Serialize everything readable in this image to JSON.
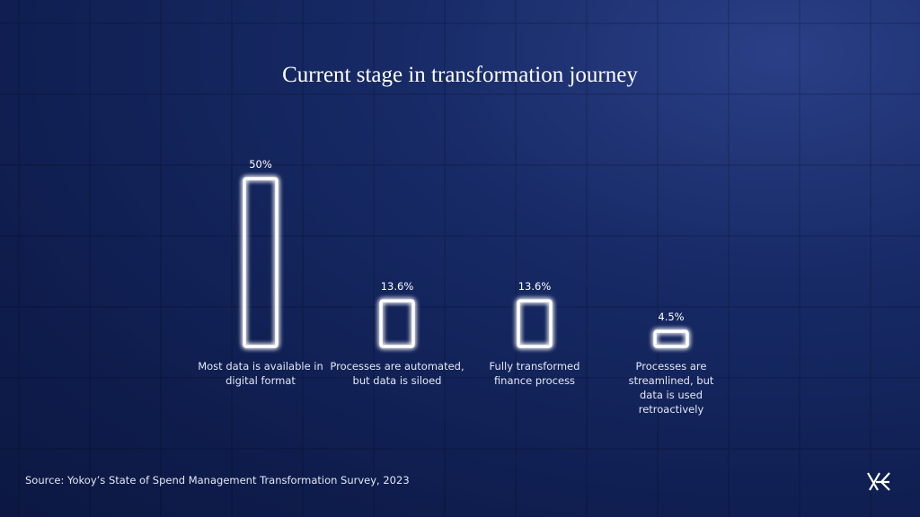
{
  "chart_data": {
    "type": "bar",
    "title": "Current stage in transformation journey",
    "categories": [
      "Most data is available in digital format",
      "Processes are automated, but data is siloed",
      "Fully transformed finance process",
      "Processes are streamlined, but data is used retroactively"
    ],
    "values": [
      50,
      13.6,
      13.6,
      4.5
    ],
    "value_labels": [
      "50%",
      "13.6%",
      "13.6%",
      "4.5%"
    ],
    "color": "#ffffff",
    "source": "Source: Yokoy’s State of Spend Management Transformation Survey, 2023"
  }
}
